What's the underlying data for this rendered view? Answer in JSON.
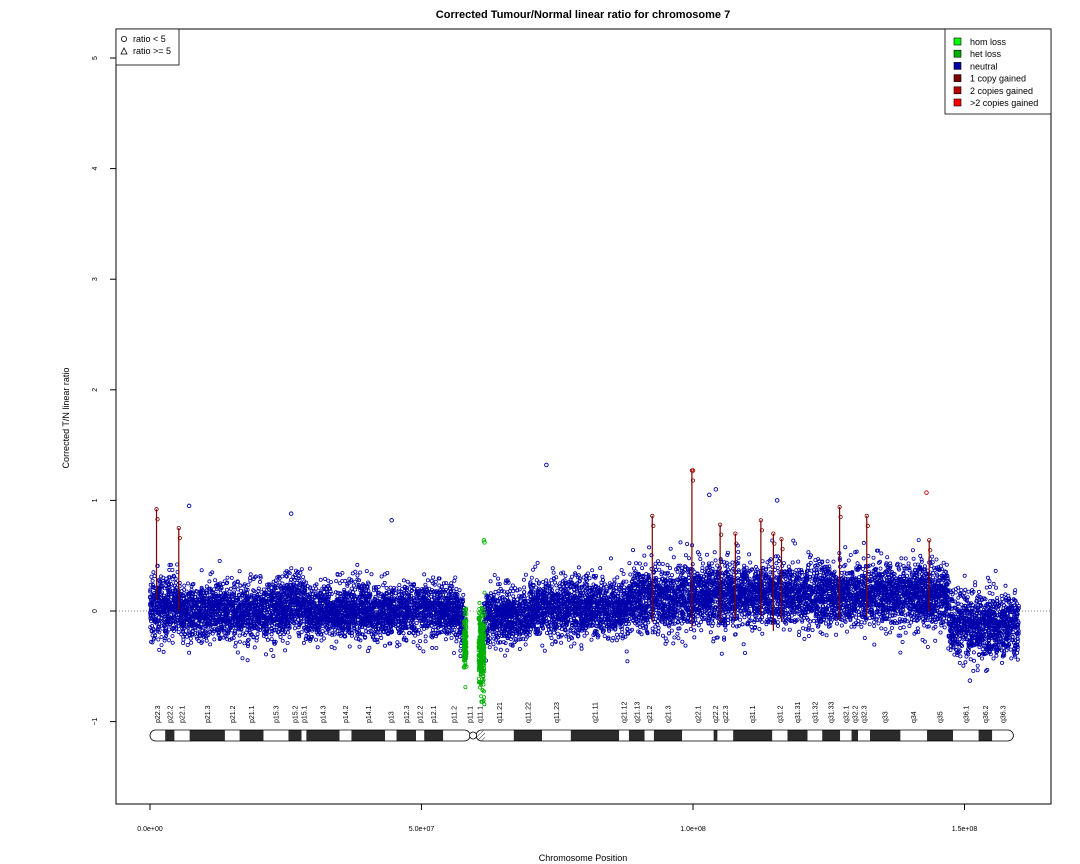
{
  "chart_data": {
    "type": "scatter",
    "title": "Corrected Tumour/Normal linear ratio for chromosome  7",
    "xlabel": "Chromosome Position",
    "ylabel": "Corrected T/N linear ratio",
    "xlim": [
      0,
      160000000
    ],
    "ylim": [
      -1.75,
      5.25
    ],
    "x_ticks": [
      0,
      50000000,
      100000000,
      150000000
    ],
    "x_tick_labels": [
      "0.0e+00",
      "5.0e+07",
      "1.0e+08",
      "1.5e+08"
    ],
    "y_ticks": [
      -1,
      0,
      1,
      2,
      3,
      4,
      5
    ],
    "y_tick_labels": [
      "−1",
      "0",
      "1",
      "2",
      "3",
      "4",
      "5"
    ],
    "reference_line_y": 0,
    "chromosome_length": 159000000,
    "centromere": [
      58000000,
      61000000
    ],
    "shape_legend": {
      "position": "top-left",
      "entries": [
        {
          "label": "ratio < 5",
          "symbol": "circle"
        },
        {
          "label": "ratio >= 5",
          "symbol": "triangle"
        }
      ]
    },
    "color_legend": {
      "position": "top-right",
      "entries": [
        {
          "label": "hom loss",
          "color": "#00ff00"
        },
        {
          "label": "het loss",
          "color": "#00b000"
        },
        {
          "label": "neutral",
          "color": "#0000aa"
        },
        {
          "label": "1 copy gained",
          "color": "#7a0000"
        },
        {
          "label": "2 copies gained",
          "color": "#bb0000"
        },
        {
          "label": ">2 copies gained",
          "color": "#ff0000"
        }
      ]
    },
    "cytobands": [
      {
        "name": "p22.3",
        "start": 0,
        "end": 2800000,
        "stain": "gneg"
      },
      {
        "name": "p22.2",
        "start": 2800000,
        "end": 4500000,
        "stain": "gpos"
      },
      {
        "name": "p22.1",
        "start": 4500000,
        "end": 7300000,
        "stain": "gneg"
      },
      {
        "name": "p21.3",
        "start": 7300000,
        "end": 13800000,
        "stain": "gpos"
      },
      {
        "name": "p21.2",
        "start": 13800000,
        "end": 16500000,
        "stain": "gneg"
      },
      {
        "name": "p21.1",
        "start": 16500000,
        "end": 20900000,
        "stain": "gpos"
      },
      {
        "name": "p15.3",
        "start": 20900000,
        "end": 25500000,
        "stain": "gneg"
      },
      {
        "name": "p15.2",
        "start": 25500000,
        "end": 27900000,
        "stain": "gpos"
      },
      {
        "name": "p15.1",
        "start": 27900000,
        "end": 28800000,
        "stain": "gneg"
      },
      {
        "name": "p14.3",
        "start": 28800000,
        "end": 34900000,
        "stain": "gpos"
      },
      {
        "name": "p14.2",
        "start": 34900000,
        "end": 37100000,
        "stain": "gneg"
      },
      {
        "name": "p14.1",
        "start": 37100000,
        "end": 43300000,
        "stain": "gpos"
      },
      {
        "name": "p13",
        "start": 43300000,
        "end": 45400000,
        "stain": "gneg"
      },
      {
        "name": "p12.3",
        "start": 45400000,
        "end": 49000000,
        "stain": "gpos"
      },
      {
        "name": "p12.2",
        "start": 49000000,
        "end": 50500000,
        "stain": "gneg"
      },
      {
        "name": "p12.1",
        "start": 50500000,
        "end": 54000000,
        "stain": "gpos"
      },
      {
        "name": "p11.2",
        "start": 54000000,
        "end": 58000000,
        "stain": "gneg"
      },
      {
        "name": "p11.1",
        "start": 58000000,
        "end": 59900000,
        "stain": "acen"
      },
      {
        "name": "q11.1",
        "start": 59900000,
        "end": 61700000,
        "stain": "acen"
      },
      {
        "name": "q11.21",
        "start": 61700000,
        "end": 67000000,
        "stain": "gneg"
      },
      {
        "name": "q11.22",
        "start": 67000000,
        "end": 72200000,
        "stain": "gpos"
      },
      {
        "name": "q11.23",
        "start": 72200000,
        "end": 77500000,
        "stain": "gneg"
      },
      {
        "name": "q21.11",
        "start": 77500000,
        "end": 86400000,
        "stain": "gpos"
      },
      {
        "name": "q21.12",
        "start": 86400000,
        "end": 88200000,
        "stain": "gneg"
      },
      {
        "name": "q21.13",
        "start": 88200000,
        "end": 91100000,
        "stain": "gpos"
      },
      {
        "name": "q21.2",
        "start": 91100000,
        "end": 92800000,
        "stain": "gneg"
      },
      {
        "name": "q21.3",
        "start": 92800000,
        "end": 98000000,
        "stain": "gpos"
      },
      {
        "name": "q22.1",
        "start": 98000000,
        "end": 103800000,
        "stain": "gneg"
      },
      {
        "name": "q22.2",
        "start": 103800000,
        "end": 104500000,
        "stain": "gpos"
      },
      {
        "name": "q22.3",
        "start": 104500000,
        "end": 107400000,
        "stain": "gneg"
      },
      {
        "name": "q31.1",
        "start": 107400000,
        "end": 114600000,
        "stain": "gpos"
      },
      {
        "name": "q31.2",
        "start": 114600000,
        "end": 117400000,
        "stain": "gneg"
      },
      {
        "name": "q31.31",
        "start": 117400000,
        "end": 121100000,
        "stain": "gpos"
      },
      {
        "name": "q31.32",
        "start": 121100000,
        "end": 123800000,
        "stain": "gneg"
      },
      {
        "name": "q31.33",
        "start": 123800000,
        "end": 127100000,
        "stain": "gpos"
      },
      {
        "name": "q32.1",
        "start": 127100000,
        "end": 129200000,
        "stain": "gneg"
      },
      {
        "name": "q32.2",
        "start": 129200000,
        "end": 130400000,
        "stain": "gpos"
      },
      {
        "name": "q32.3",
        "start": 130400000,
        "end": 132600000,
        "stain": "gneg"
      },
      {
        "name": "q33",
        "start": 132600000,
        "end": 138200000,
        "stain": "gpos"
      },
      {
        "name": "q34",
        "start": 138200000,
        "end": 143100000,
        "stain": "gneg"
      },
      {
        "name": "q35",
        "start": 143100000,
        "end": 147900000,
        "stain": "gpos"
      },
      {
        "name": "q36.1",
        "start": 147900000,
        "end": 152600000,
        "stain": "gneg"
      },
      {
        "name": "q36.2",
        "start": 152600000,
        "end": 155100000,
        "stain": "gpos"
      },
      {
        "name": "q36.3",
        "start": 155100000,
        "end": 159000000,
        "stain": "gneg"
      }
    ],
    "series": [
      {
        "name": "neutral",
        "color": "#0000aa",
        "segments": [
          {
            "start": 0,
            "end": 3000000,
            "mean": 0.03,
            "sd": 0.14
          },
          {
            "start": 3000000,
            "end": 5500000,
            "mean": 0.05,
            "sd": 0.14
          },
          {
            "start": 5500000,
            "end": 25000000,
            "mean": 0.0,
            "sd": 0.13
          },
          {
            "start": 25000000,
            "end": 28500000,
            "mean": 0.08,
            "sd": 0.14
          },
          {
            "start": 28500000,
            "end": 57000000,
            "mean": 0.0,
            "sd": 0.12
          },
          {
            "start": 57000000,
            "end": 58000000,
            "mean": -0.1,
            "sd": 0.12
          },
          {
            "start": 61400000,
            "end": 70000000,
            "mean": -0.05,
            "sd": 0.12
          },
          {
            "start": 70000000,
            "end": 88000000,
            "mean": 0.02,
            "sd": 0.13
          },
          {
            "start": 88000000,
            "end": 98000000,
            "mean": 0.12,
            "sd": 0.14
          },
          {
            "start": 98000000,
            "end": 147000000,
            "mean": 0.15,
            "sd": 0.14
          },
          {
            "start": 147000000,
            "end": 160000000,
            "mean": -0.12,
            "sd": 0.14
          }
        ]
      },
      {
        "name": "het loss",
        "color": "#00b000",
        "segments": [
          {
            "start": 57800000,
            "end": 58300000,
            "mean": -0.3,
            "sd": 0.12
          },
          {
            "start": 60500000,
            "end": 61600000,
            "mean": -0.35,
            "sd": 0.18
          }
        ]
      },
      {
        "name": "1 copy gained",
        "color": "#7a0000",
        "spikes": [
          {
            "x": 1200000,
            "y_low": 0.1,
            "y_high": 0.92
          },
          {
            "x": 5300000,
            "y_low": 0.0,
            "y_high": 0.75
          },
          {
            "x": 92500000,
            "y_low": -0.1,
            "y_high": 0.86
          },
          {
            "x": 99800000,
            "y_low": -0.15,
            "y_high": 1.27
          },
          {
            "x": 105000000,
            "y_low": -0.1,
            "y_high": 0.78
          },
          {
            "x": 107800000,
            "y_low": -0.08,
            "y_high": 0.7
          },
          {
            "x": 112500000,
            "y_low": -0.05,
            "y_high": 0.82
          },
          {
            "x": 114800000,
            "y_low": -0.18,
            "y_high": 0.7
          },
          {
            "x": 116300000,
            "y_low": -0.1,
            "y_high": 0.65
          },
          {
            "x": 127000000,
            "y_low": -0.08,
            "y_high": 0.94
          },
          {
            "x": 132000000,
            "y_low": -0.05,
            "y_high": 0.86
          },
          {
            "x": 143500000,
            "y_low": 0.0,
            "y_high": 0.64
          }
        ]
      }
    ],
    "outliers": [
      {
        "x": 7200000,
        "y": 0.95,
        "color": "#0000aa"
      },
      {
        "x": 26000000,
        "y": 0.88,
        "color": "#0000aa"
      },
      {
        "x": 44500000,
        "y": 0.82,
        "color": "#0000aa"
      },
      {
        "x": 73000000,
        "y": 1.32,
        "color": "#0000aa"
      },
      {
        "x": 100000000,
        "y": 1.27,
        "color": "#bb0000"
      },
      {
        "x": 104200000,
        "y": 1.1,
        "color": "#0000aa"
      },
      {
        "x": 103000000,
        "y": 1.05,
        "color": "#0000aa"
      },
      {
        "x": 115500000,
        "y": 1.0,
        "color": "#0000aa"
      },
      {
        "x": 143000000,
        "y": 1.07,
        "color": "#bb0000"
      },
      {
        "x": 61500000,
        "y": 0.64,
        "color": "#00b000"
      },
      {
        "x": 61600000,
        "y": 0.62,
        "color": "#00b000"
      },
      {
        "x": 61200000,
        "y": -0.82,
        "color": "#00b000"
      },
      {
        "x": 151000000,
        "y": -0.63,
        "color": "#0000aa"
      }
    ]
  }
}
